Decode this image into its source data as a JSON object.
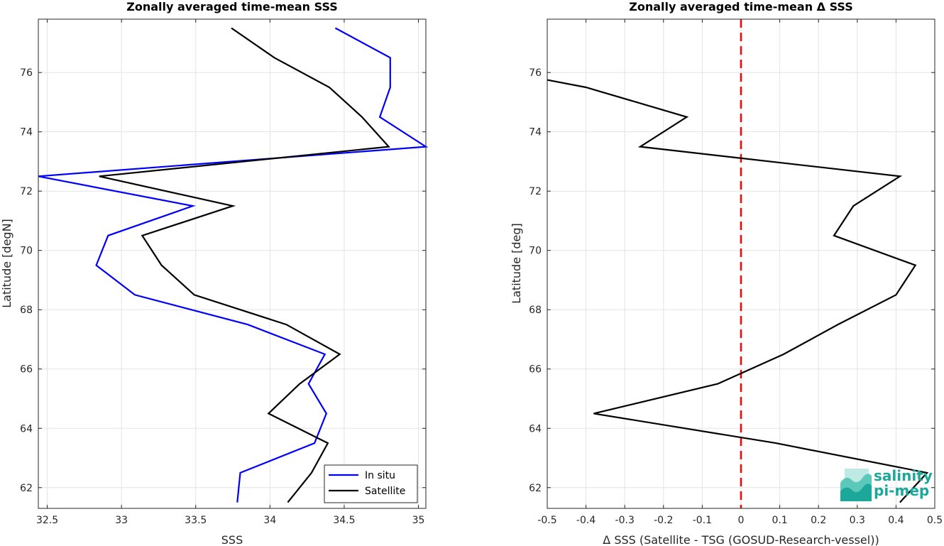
{
  "chart_data": [
    {
      "type": "line",
      "title": "Zonally averaged time-mean SSS",
      "xlabel": "SSS",
      "ylabel": "Latitude [degN]",
      "xlim": [
        32.44,
        35.05
      ],
      "ylim": [
        61.3,
        77.8
      ],
      "xticks": [
        "32.5",
        "33",
        "33.5",
        "34",
        "34.5",
        "35"
      ],
      "xtick_values": [
        32.5,
        33,
        33.5,
        34,
        34.5,
        35
      ],
      "yticks": [
        "62",
        "64",
        "66",
        "68",
        "70",
        "72",
        "74",
        "76"
      ],
      "ytick_values": [
        62,
        64,
        66,
        68,
        70,
        72,
        74,
        76
      ],
      "grid": true,
      "legend_position": "bottom-right",
      "series": [
        {
          "name": "In situ",
          "color": "#0000ff",
          "points": [
            [
              34.44,
              77.5
            ],
            [
              34.81,
              76.5
            ],
            [
              34.81,
              75.5
            ],
            [
              34.74,
              74.5
            ],
            [
              35.05,
              73.5
            ],
            [
              32.44,
              72.5
            ],
            [
              33.48,
              71.5
            ],
            [
              32.91,
              70.5
            ],
            [
              32.83,
              69.5
            ],
            [
              33.09,
              68.5
            ],
            [
              33.85,
              67.5
            ],
            [
              34.37,
              66.5
            ],
            [
              34.26,
              65.5
            ],
            [
              34.38,
              64.5
            ],
            [
              34.3,
              63.5
            ],
            [
              33.8,
              62.5
            ],
            [
              33.78,
              61.5
            ]
          ]
        },
        {
          "name": "Satellite",
          "color": "#000000",
          "points": [
            [
              33.74,
              77.5
            ],
            [
              34.03,
              76.5
            ],
            [
              34.4,
              75.5
            ],
            [
              34.62,
              74.5
            ],
            [
              34.8,
              73.5
            ],
            [
              32.85,
              72.5
            ],
            [
              33.75,
              71.5
            ],
            [
              33.14,
              70.5
            ],
            [
              33.27,
              69.5
            ],
            [
              33.49,
              68.5
            ],
            [
              34.11,
              67.5
            ],
            [
              34.47,
              66.5
            ],
            [
              34.2,
              65.5
            ],
            [
              33.99,
              64.5
            ],
            [
              34.39,
              63.5
            ],
            [
              34.28,
              62.5
            ],
            [
              34.12,
              61.5
            ]
          ]
        }
      ]
    },
    {
      "type": "line",
      "title": "Zonally averaged time-mean Δ SSS",
      "xlabel": "Δ SSS (Satellite - TSG (GOSUD-Research-vessel))",
      "ylabel": "Latitude [deg]",
      "xlim": [
        -0.5,
        0.5
      ],
      "ylim": [
        61.3,
        77.8
      ],
      "xticks": [
        "-0.5",
        "-0.4",
        "-0.3",
        "-0.2",
        "-0.1",
        "0",
        "0.1",
        "0.2",
        "0.3",
        "0.4",
        "0.5"
      ],
      "xtick_values": [
        -0.5,
        -0.4,
        -0.3,
        -0.2,
        -0.1,
        0,
        0.1,
        0.2,
        0.3,
        0.4,
        0.5
      ],
      "yticks": [
        "62",
        "64",
        "66",
        "68",
        "70",
        "72",
        "74",
        "76"
      ],
      "ytick_values": [
        62,
        64,
        66,
        68,
        70,
        72,
        74,
        76
      ],
      "grid": true,
      "reference_line": {
        "x": 0,
        "color": "#ff0000",
        "style": "dashed"
      },
      "series": [
        {
          "color": "#000000",
          "points": [
            [
              -0.5,
              75.75
            ],
            [
              -0.4,
              75.5
            ],
            [
              -0.14,
              74.5
            ],
            [
              -0.26,
              73.5
            ],
            [
              0.41,
              72.5
            ],
            [
              0.29,
              71.5
            ],
            [
              0.24,
              70.5
            ],
            [
              0.45,
              69.5
            ],
            [
              0.4,
              68.5
            ],
            [
              0.25,
              67.5
            ],
            [
              0.11,
              66.5
            ],
            [
              -0.06,
              65.5
            ],
            [
              -0.38,
              64.5
            ],
            [
              0.09,
              63.5
            ],
            [
              0.48,
              62.5
            ],
            [
              0.41,
              61.5
            ]
          ]
        }
      ]
    }
  ],
  "logo": {
    "line1": "salinity",
    "line2": "pi-mep",
    "color": "#1ba89a"
  }
}
